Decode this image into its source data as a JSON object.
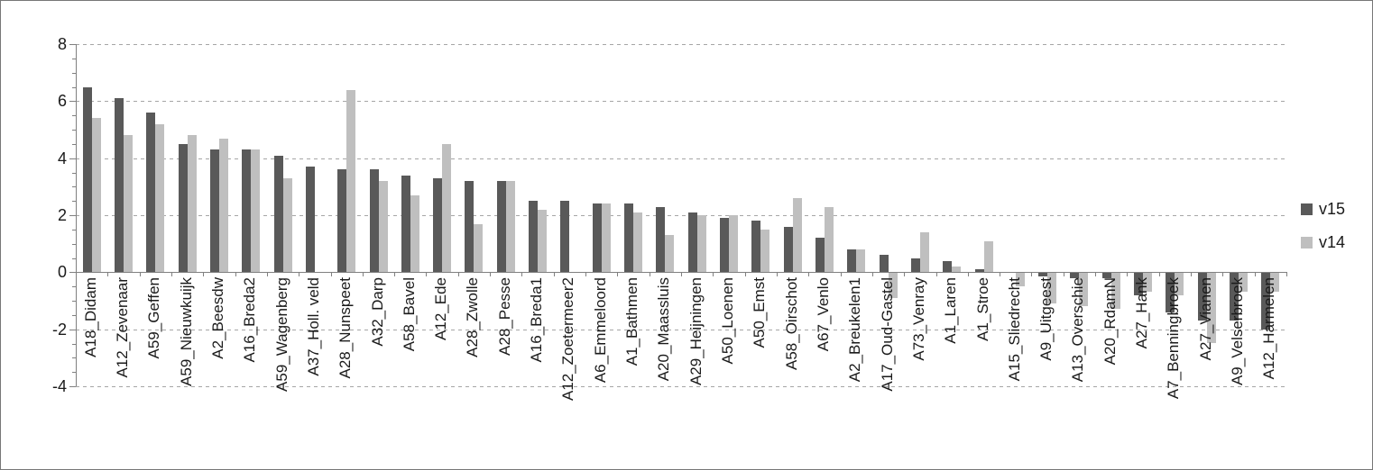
{
  "window": {
    "background": "#ffffff",
    "border_color": "#777777"
  },
  "chart_data": {
    "type": "bar",
    "title": "",
    "xlabel": "",
    "ylabel": "",
    "categories": [
      "A18_Didam",
      "A12_Zevenaar",
      "A59_Geffen",
      "A59_Nieuwkuijk",
      "A2_Beesdw",
      "A16_Breda2",
      "A59_Wagenberg",
      "A37_Holl. veld",
      "A28_Nunspeet",
      "A32_Darp",
      "A58_Bavel",
      "A12_Ede",
      "A28_Zwolle",
      "A28_Pesse",
      "A16_Breda1",
      "A12_Zoetermeer2",
      "A6_Emmeloord",
      "A1_Bathmen",
      "A20_Maassluis",
      "A29_Heijningen",
      "A50_Loenen",
      "A50_Emst",
      "A58_Oirschot",
      "A67_Venlo",
      "A2_Breukelen1",
      "A17_Oud-Gastel",
      "A73_Venray",
      "A1_Laren",
      "A1_Stroe",
      "A15_Sliedrecht",
      "A9_Uitgeest",
      "A13_Overschie",
      "A20_RdamN",
      "A27_Hank",
      "A7_Benningbroek",
      "A27_Vianen",
      "A9_Velserbroek",
      "A12_Harmelen"
    ],
    "series": [
      {
        "name": "v15",
        "color": "#595959",
        "values": [
          6.5,
          6.1,
          5.6,
          4.5,
          4.3,
          4.3,
          4.1,
          3.7,
          3.6,
          3.6,
          3.4,
          3.3,
          3.2,
          3.2,
          2.5,
          2.5,
          2.4,
          2.4,
          2.3,
          2.1,
          1.9,
          1.8,
          1.6,
          1.2,
          0.8,
          0.6,
          0.5,
          0.4,
          0.1,
          0,
          -0.15,
          -0.2,
          -0.2,
          -0.8,
          -1.4,
          -1.7,
          -1.7,
          -2.0
        ]
      },
      {
        "name": "v14",
        "color": "#bfbfbf",
        "values": [
          5.4,
          4.8,
          5.2,
          4.8,
          4.7,
          4.3,
          3.3,
          0,
          6.4,
          3.2,
          2.7,
          4.5,
          1.7,
          3.2,
          2.2,
          0,
          2.4,
          2.1,
          1.3,
          2.0,
          2.0,
          1.5,
          2.6,
          2.3,
          0.8,
          -0.9,
          1.4,
          0.2,
          1.1,
          -0.5,
          -1.1,
          -1.2,
          -1.3,
          -0.7,
          -0.8,
          -2.5,
          -0.7,
          -0.7
        ]
      }
    ],
    "ylim": [
      -4,
      8
    ],
    "yticks": [
      8,
      6,
      4,
      2,
      0,
      -2,
      -4
    ],
    "minor_tick_step": 0.5,
    "grid": "horizontal-dashed",
    "legend_position": "right",
    "grid_color": "#a6a6a6",
    "axis_color": "#808080",
    "text_color": "#1a1a1a"
  }
}
